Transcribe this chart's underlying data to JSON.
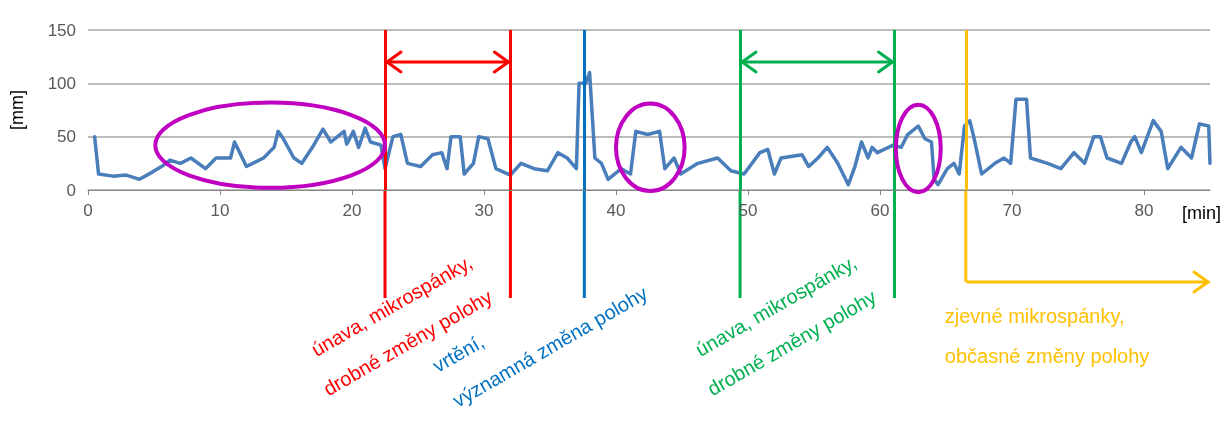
{
  "chart_data": {
    "type": "line",
    "xlabel": "[min]",
    "ylabel": "[mm]",
    "xlim": [
      0,
      85
    ],
    "xticks": [
      0,
      10,
      20,
      30,
      40,
      50,
      60,
      70,
      80
    ],
    "ylim": [
      0,
      150
    ],
    "yticks": [
      0,
      50,
      100,
      150
    ],
    "grid": "y",
    "marker": "none",
    "line_style": "solid",
    "series": [
      {
        "color": "#4a7ebb",
        "x": [
          0.5,
          0.8,
          1.9,
          2.9,
          3.9,
          4.9,
          5.7,
          6.2,
          7.0,
          7.8,
          8.9,
          9.7,
          10.8,
          11.1,
          11.5,
          12.0,
          13.3,
          14.1,
          14.4,
          14.8,
          15.6,
          16.2,
          17.0,
          17.8,
          18.4,
          19.4,
          19.6,
          20.1,
          20.5,
          21.0,
          21.4,
          22.2,
          22.5,
          23.1,
          23.7,
          24.2,
          25.2,
          26.1,
          26.8,
          27.2,
          27.5,
          28.2,
          28.5,
          29.2,
          29.6,
          30.3,
          30.9,
          32.0,
          32.8,
          33.8,
          34.8,
          35.6,
          36.3,
          37.0,
          37.2,
          37.7,
          38.0,
          38.4,
          38.9,
          39.4,
          40.4,
          41.1,
          41.5,
          42.4,
          43.3,
          43.7,
          44.4,
          44.9,
          46.2,
          47.7,
          48.7,
          49.7,
          50.9,
          51.5,
          52.0,
          52.5,
          54.1,
          54.6,
          55.3,
          56.0,
          56.8,
          57.6,
          58.1,
          58.6,
          59.1,
          59.4,
          59.8,
          61.0,
          61.6,
          62.1,
          62.9,
          63.4,
          63.9,
          64.1,
          64.4,
          65.1,
          65.6,
          66.0,
          66.4,
          66.8,
          67.1,
          67.7,
          68.7,
          69.4,
          69.9,
          70.3,
          71.1,
          71.4,
          72.7,
          73.7,
          74.7,
          75.5,
          76.2,
          76.7,
          77.2,
          78.3,
          79.0,
          79.3,
          79.8,
          80.7,
          81.3,
          81.8,
          82.8,
          83.6,
          84.2,
          84.9,
          85.0
        ],
        "values": [
          50,
          15,
          13,
          14,
          10,
          17,
          23,
          28,
          25,
          30,
          20,
          30,
          30,
          45,
          35,
          22,
          30,
          40,
          55,
          48,
          30,
          25,
          40,
          57,
          45,
          55,
          43,
          55,
          40,
          58,
          45,
          42,
          20,
          50,
          52,
          25,
          22,
          33,
          35,
          20,
          50,
          50,
          15,
          25,
          50,
          48,
          20,
          14,
          25,
          20,
          18,
          35,
          30,
          20,
          100,
          100,
          110,
          30,
          25,
          10,
          20,
          15,
          55,
          52,
          55,
          20,
          30,
          15,
          25,
          30,
          18,
          15,
          35,
          38,
          15,
          30,
          33,
          22,
          30,
          40,
          25,
          5,
          22,
          45,
          30,
          40,
          35,
          42,
          40,
          52,
          60,
          48,
          45,
          10,
          5,
          20,
          25,
          15,
          60,
          65,
          50,
          15,
          25,
          30,
          25,
          85,
          85,
          30,
          25,
          20,
          35,
          25,
          50,
          50,
          30,
          25,
          45,
          50,
          35,
          65,
          55,
          20,
          40,
          30,
          62,
          60,
          25
        ]
      }
    ],
    "ref_lines": [
      {
        "axis": "x",
        "value": 22.5,
        "color": "#ff0000"
      },
      {
        "axis": "x",
        "value": 32,
        "color": "#ff0000",
        "label": "únava, mikrospánky,\ndrobné změny polohy"
      },
      {
        "axis": "x",
        "value": 37.6,
        "color": "#0070c0",
        "label": "vrtění,\nvýznamná změna polohy"
      },
      {
        "axis": "x",
        "value": 49.4,
        "color": "#00b050"
      },
      {
        "axis": "x",
        "value": 61.1,
        "color": "#00b050",
        "label": "únava, mikrospánky,\ndrobné změny polohy"
      },
      {
        "axis": "x",
        "value": 66.5,
        "color": "#ffc000",
        "label": "zjevné mikrospánky,\nobčasné změny polohy"
      }
    ]
  }
}
